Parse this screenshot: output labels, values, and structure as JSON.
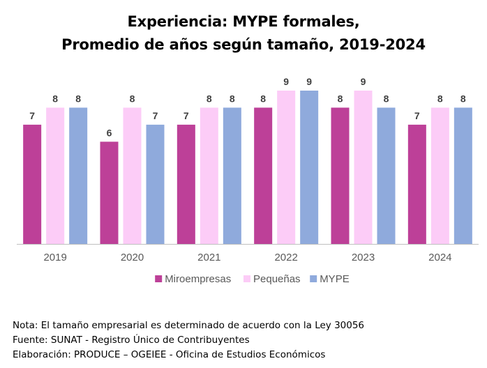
{
  "title_lines": [
    "Experiencia: MYPE formales,",
    "Promedio de años según tamaño, 2019-2024"
  ],
  "notes": [
    "Nota: El tamaño empresarial es determinado de acuerdo con la Ley 30056",
    "Fuente: SUNAT - Registro Único de Contribuyentes",
    "Elaboración: PRODUCE – OGEIEE - Oficina de Estudios Económicos"
  ],
  "colors": {
    "Miroempresas": "#bd4098",
    "Pequeñas": "#fcccf7",
    "MYPE": "#8faadc",
    "axis": "#bfbfbf",
    "tick_text": "#595959",
    "data_label": "#404040"
  },
  "chart_data": {
    "type": "bar",
    "title": "Experiencia: MYPE formales, Promedio de años según tamaño, 2019-2024",
    "categories": [
      "2019",
      "2020",
      "2021",
      "2022",
      "2023",
      "2024"
    ],
    "series": [
      {
        "name": "Miroempresas",
        "values": [
          7,
          6,
          7,
          8,
          8,
          7
        ]
      },
      {
        "name": "Pequeñas",
        "values": [
          8,
          8,
          8,
          9,
          9,
          8
        ]
      },
      {
        "name": "MYPE",
        "values": [
          8,
          7,
          8,
          9,
          8,
          8
        ]
      }
    ],
    "ylim": [
      0,
      9
    ],
    "grid": false,
    "y_axis_visible": false,
    "data_labels": true,
    "legend": "bottom"
  }
}
